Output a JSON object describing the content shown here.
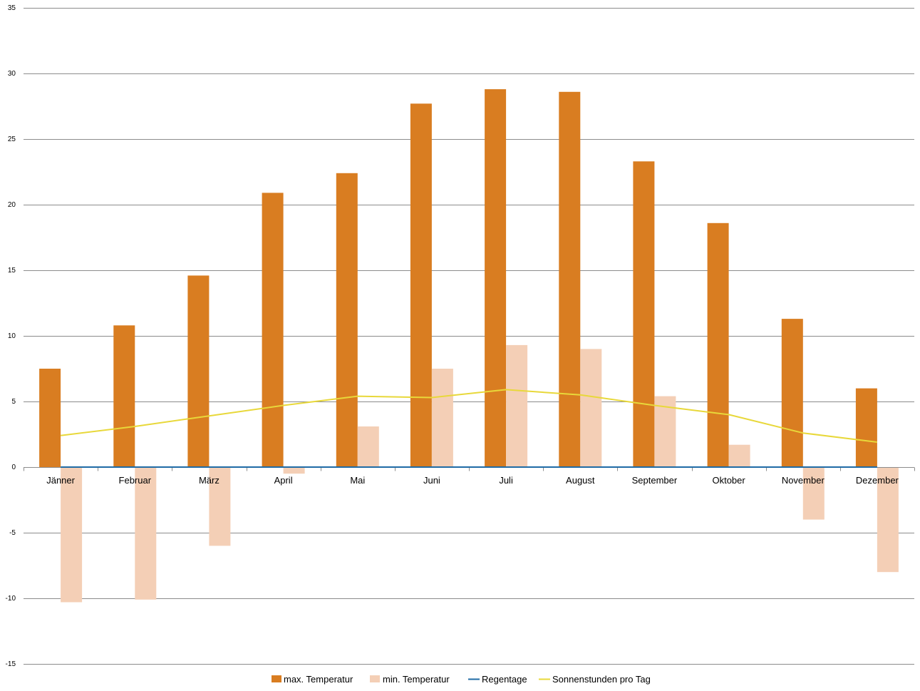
{
  "chart_data": {
    "type": "bar",
    "categories": [
      "Jänner",
      "Februar",
      "März",
      "April",
      "Mai",
      "Juni",
      "Juli",
      "August",
      "September",
      "Oktober",
      "November",
      "Dezember"
    ],
    "ylim": [
      -15,
      35
    ],
    "yticks": [
      35,
      30,
      25,
      20,
      15,
      10,
      5,
      0,
      -5,
      -10,
      -15
    ],
    "grid": true,
    "legend_position": "bottom",
    "series": [
      {
        "name": "max. Temperatur",
        "kind": "bar",
        "color": "#D97D21",
        "values": [
          7.5,
          10.8,
          14.6,
          20.9,
          22.4,
          27.7,
          28.8,
          28.6,
          23.3,
          18.6,
          11.3,
          6.0
        ]
      },
      {
        "name": "min. Temperatur",
        "kind": "bar",
        "color": "#F4CFB6",
        "values": [
          -10.3,
          -10.1,
          -6.0,
          -0.5,
          3.1,
          7.5,
          9.3,
          9.0,
          5.4,
          1.7,
          -4.0,
          -8.0
        ]
      },
      {
        "name": "Regentage",
        "kind": "line",
        "color": "#1F6BA5",
        "values": [
          0,
          0,
          0,
          0,
          0,
          0,
          0,
          0,
          0,
          0,
          0,
          0
        ]
      },
      {
        "name": "Sonnenstunden pro Tag",
        "kind": "line",
        "color": "#E8D83A",
        "values": [
          2.4,
          3.1,
          3.9,
          4.7,
          5.4,
          5.3,
          5.9,
          5.5,
          4.7,
          4.0,
          2.6,
          1.9
        ]
      }
    ]
  }
}
